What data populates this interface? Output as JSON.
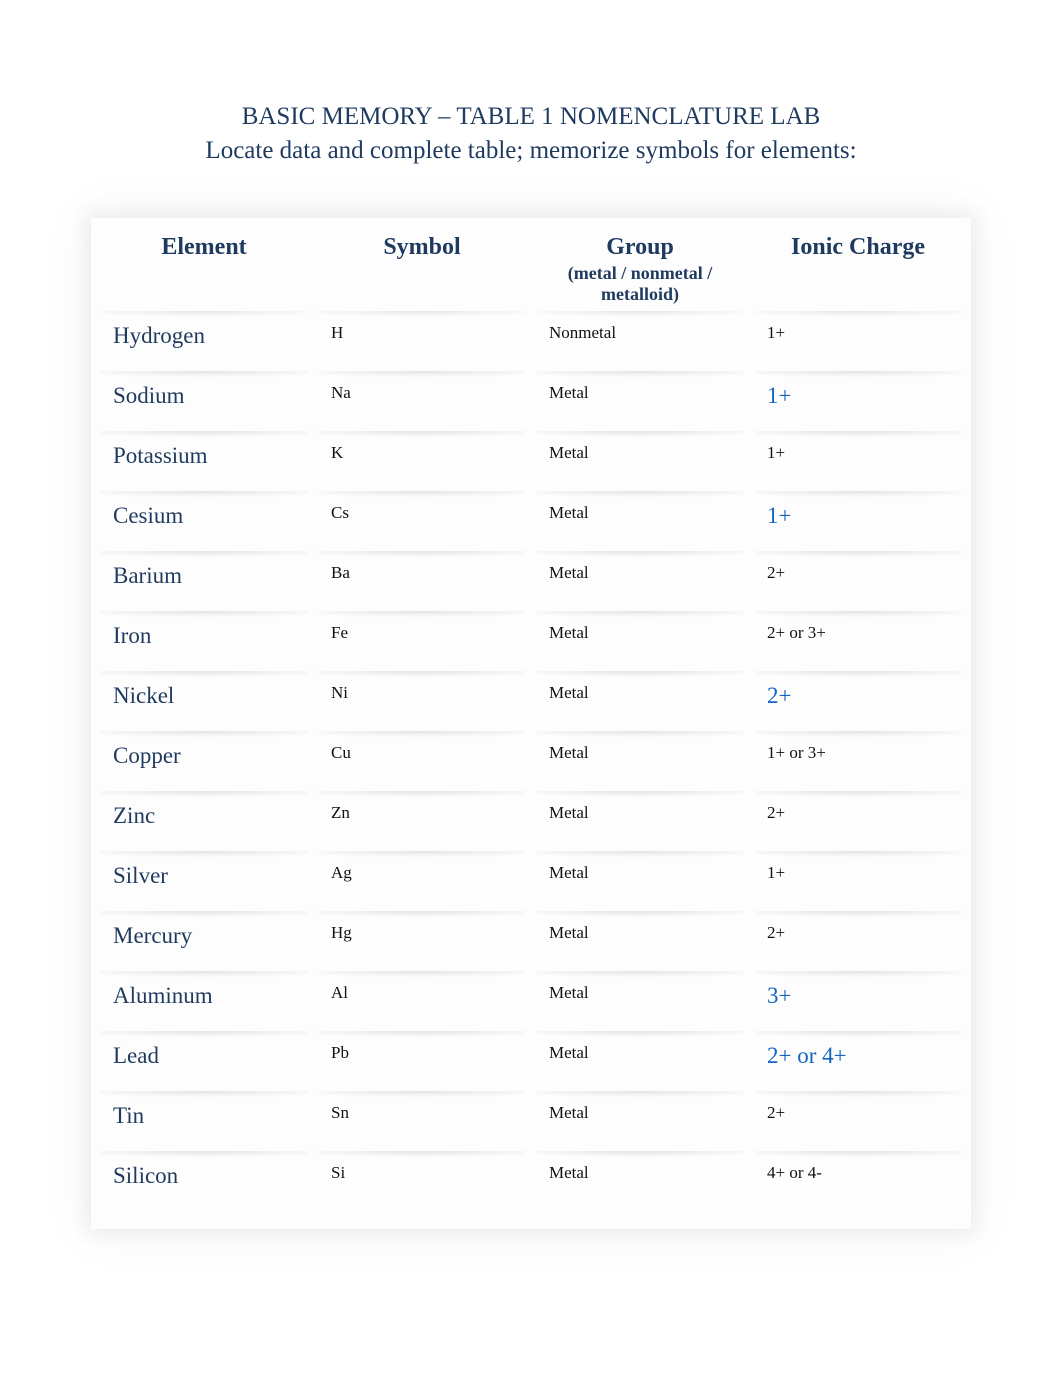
{
  "colors": {
    "heading": "#1f3a5f",
    "body": "#111111",
    "link": "#1565c0",
    "page_bg": "#ffffff",
    "table_bg": "#fdfdfd",
    "shadow": "rgba(0,0,0,0.08)"
  },
  "fonts": {
    "family": "Georgia, 'Times New Roman', serif",
    "title_size_pt": 19,
    "header_size_pt": 18,
    "header_sub_size_pt": 13,
    "element_name_size_pt": 17,
    "body_small_size_pt": 13,
    "link_size_pt": 17
  },
  "title": "BASIC MEMORY – TABLE 1 NOMENCLATURE LAB",
  "subtitle": "Locate data and complete table; memorize symbols for elements:",
  "table": {
    "columns": [
      {
        "label": "Element",
        "sub": ""
      },
      {
        "label": "Symbol",
        "sub": ""
      },
      {
        "label": "Group",
        "sub": "(metal / nonmetal / metalloid)"
      },
      {
        "label": "Ionic Charge",
        "sub": ""
      }
    ],
    "rows": [
      {
        "element": "Hydrogen",
        "symbol": "H",
        "group": "Nonmetal",
        "charge": "1+",
        "charge_link": false
      },
      {
        "element": "Sodium",
        "symbol": "Na",
        "group": "Metal",
        "charge": "1+",
        "charge_link": true
      },
      {
        "element": "Potassium",
        "symbol": "K",
        "group": "Metal",
        "charge": "1+",
        "charge_link": false
      },
      {
        "element": "Cesium",
        "symbol": "Cs",
        "group": "Metal",
        "charge": "1+",
        "charge_link": true
      },
      {
        "element": "Barium",
        "symbol": "Ba",
        "group": "Metal",
        "charge": "2+",
        "charge_link": false
      },
      {
        "element": "Iron",
        "symbol": "Fe",
        "group": "Metal",
        "charge": "2+ or 3+",
        "charge_link": false
      },
      {
        "element": "Nickel",
        "symbol": "Ni",
        "group": "Metal",
        "charge": "2+",
        "charge_link": true
      },
      {
        "element": "Copper",
        "symbol": "Cu",
        "group": "Metal",
        "charge": "1+ or 3+",
        "charge_link": false
      },
      {
        "element": "Zinc",
        "symbol": "Zn",
        "group": "Metal",
        "charge": "2+",
        "charge_link": false
      },
      {
        "element": "Silver",
        "symbol": "Ag",
        "group": "Metal",
        "charge": "1+",
        "charge_link": false
      },
      {
        "element": "Mercury",
        "symbol": "Hg",
        "group": "Metal",
        "charge": "2+",
        "charge_link": false
      },
      {
        "element": "Aluminum",
        "symbol": "Al",
        "group": "Metal",
        "charge": "3+",
        "charge_link": true
      },
      {
        "element": "Lead",
        "symbol": "Pb",
        "group": "Metal",
        "charge": "2+ or 4+",
        "charge_link": true
      },
      {
        "element": "Tin",
        "symbol": "Sn",
        "group": "Metal",
        "charge": "2+",
        "charge_link": false
      },
      {
        "element": "Silicon",
        "symbol": "Si",
        "group": "Metal",
        "charge": "4+ or 4-",
        "charge_link": false
      }
    ]
  }
}
